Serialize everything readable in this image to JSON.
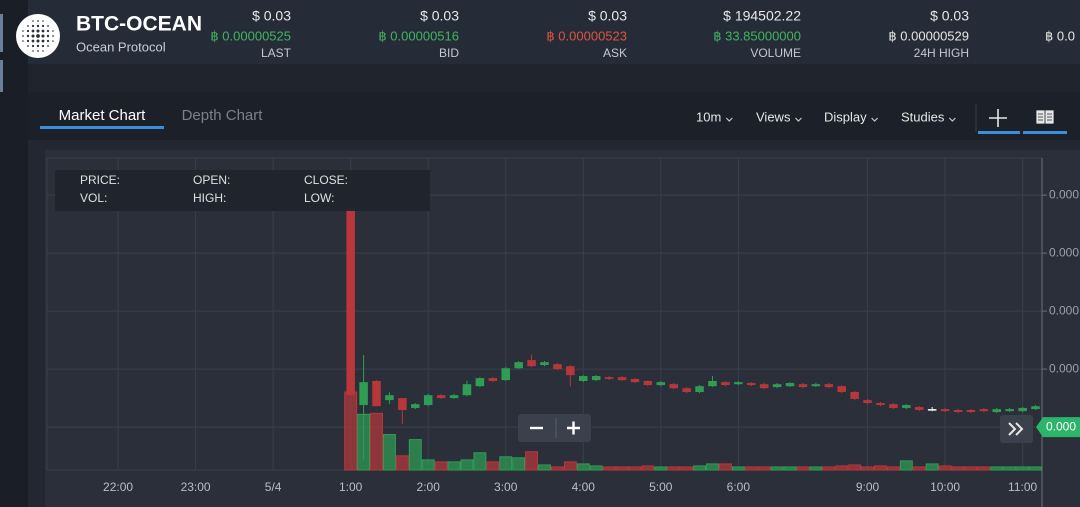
{
  "header": {
    "pair": "BTC-OCEAN",
    "name": "Ocean Protocol",
    "tickers": [
      {
        "usd": "$ 0.03",
        "btc": "฿ 0.00000525",
        "label": "LAST",
        "color": "#3fb55d"
      },
      {
        "usd": "$ 0.03",
        "btc": "฿ 0.00000516",
        "label": "BID",
        "color": "#3fb55d"
      },
      {
        "usd": "$ 0.03",
        "btc": "฿ 0.00000523",
        "label": "ASK",
        "color": "#e0533f"
      },
      {
        "usd": "$ 194502.22",
        "btc": "฿ 33.85000000",
        "label": "VOLUME",
        "color": "#3fb55d"
      },
      {
        "usd": "$ 0.03",
        "btc": "฿ 0.00000529",
        "label": "24H HIGH",
        "color": "#e6e6e6"
      },
      {
        "btc": "฿ 0.0",
        "color": "#e6e6e6"
      }
    ]
  },
  "tabs": [
    "Market Chart",
    "Depth Chart"
  ],
  "toolbar": [
    "10m",
    "Views",
    "Display",
    "Studies"
  ],
  "info_labels": [
    "PRICE:",
    "OPEN:",
    "CLOSE:",
    "VOL:",
    "HIGH:",
    "LOW:"
  ],
  "chart_data": {
    "type": "candlestick",
    "up_color": "#2f9e55",
    "down_color": "#b8373a",
    "grid": true,
    "categories": [
      null,
      null,
      null,
      null,
      null,
      "22:00",
      null,
      null,
      null,
      null,
      null,
      "23:00",
      null,
      null,
      null,
      null,
      null,
      "5/4",
      null,
      null,
      null,
      null,
      null,
      "1:00",
      null,
      null,
      null,
      null,
      null,
      "2:00",
      null,
      null,
      null,
      null,
      null,
      "3:00",
      null,
      null,
      null,
      null,
      null,
      "4:00",
      null,
      null,
      null,
      null,
      null,
      "5:00",
      null,
      null,
      null,
      null,
      null,
      "6:00",
      null,
      null,
      null,
      null,
      null,
      null,
      null,
      null,
      null,
      "9:00",
      null,
      null,
      null,
      null,
      null,
      "10:00",
      null,
      null,
      null,
      null,
      null,
      "11:00",
      null
    ],
    "open": [
      null,
      null,
      null,
      null,
      null,
      null,
      null,
      null,
      null,
      null,
      null,
      null,
      null,
      null,
      null,
      null,
      null,
      null,
      null,
      null,
      null,
      null,
      null,
      5.3255e-06,
      5.2576e-06,
      5.2659e-06,
      5.2593e-06,
      5.26e-06,
      5.2566e-06,
      5.2576e-06,
      5.261e-06,
      5.26e-06,
      5.261e-06,
      5.2641e-06,
      5.2669e-06,
      5.2662e-06,
      5.2703e-06,
      5.2731e-06,
      5.2714e-06,
      5.2717e-06,
      5.271e-06,
      5.2659e-06,
      5.2662e-06,
      5.2672e-06,
      5.2672e-06,
      5.2666e-06,
      5.2659e-06,
      5.2645e-06,
      5.2648e-06,
      5.2634e-06,
      5.2621e-06,
      5.2641e-06,
      5.2655e-06,
      5.2648e-06,
      5.2652e-06,
      5.2648e-06,
      5.2638e-06,
      5.2641e-06,
      5.2648e-06,
      5.2641e-06,
      5.2648e-06,
      5.2641e-06,
      5.2621e-06,
      5.2593e-06,
      5.2583e-06,
      5.2579e-06,
      5.2566e-06,
      5.2569e-06,
      5.2562e-06,
      5.2562e-06,
      5.2559e-06,
      5.2559e-06,
      5.2562e-06,
      5.2552e-06,
      5.2555e-06,
      5.2555e-06,
      5.2562e-06
    ],
    "high": [
      null,
      null,
      null,
      null,
      null,
      null,
      null,
      null,
      null,
      null,
      null,
      null,
      null,
      null,
      null,
      null,
      null,
      null,
      null,
      null,
      null,
      null,
      null,
      5.326e-06,
      5.2748e-06,
      5.2662e-06,
      5.262e-06,
      5.26e-06,
      5.2583e-06,
      5.2614e-06,
      5.2614e-06,
      5.2614e-06,
      5.266e-06,
      5.2672e-06,
      5.2672e-06,
      5.2707e-06,
      5.2728e-06,
      5.275e-06,
      5.2728e-06,
      5.2721e-06,
      5.2714e-06,
      5.2679e-06,
      5.2679e-06,
      5.2676e-06,
      5.2676e-06,
      5.2669e-06,
      5.2662e-06,
      5.2659e-06,
      5.2652e-06,
      5.2638e-06,
      5.2645e-06,
      5.2676e-06,
      5.2659e-06,
      5.2659e-06,
      5.2655e-06,
      5.2652e-06,
      5.2652e-06,
      5.2655e-06,
      5.2652e-06,
      5.2652e-06,
      5.2652e-06,
      5.2645e-06,
      5.2624e-06,
      5.2597e-06,
      5.2586e-06,
      5.2583e-06,
      5.2579e-06,
      5.2572e-06,
      5.2569e-06,
      5.2566e-06,
      5.2562e-06,
      5.2562e-06,
      5.2566e-06,
      5.2566e-06,
      5.2566e-06,
      5.2569e-06,
      5.2576e-06
    ],
    "low": [
      null,
      null,
      null,
      null,
      null,
      null,
      null,
      null,
      null,
      null,
      null,
      null,
      null,
      null,
      null,
      null,
      null,
      null,
      null,
      null,
      null,
      null,
      null,
      5.261e-06,
      5.2386e-06,
      5.2572e-06,
      5.258e-06,
      5.251e-06,
      5.2562e-06,
      5.2572e-06,
      5.2597e-06,
      5.2597e-06,
      5.2607e-06,
      5.2638e-06,
      5.2655e-06,
      5.2659e-06,
      5.27e-06,
      5.2707e-06,
      5.271e-06,
      5.2697e-06,
      5.264e-06,
      5.2655e-06,
      5.2659e-06,
      5.2662e-06,
      5.2659e-06,
      5.2652e-06,
      5.2641e-06,
      5.2641e-06,
      5.2631e-06,
      5.2617e-06,
      5.2617e-06,
      5.2638e-06,
      5.2641e-06,
      5.2645e-06,
      5.2641e-06,
      5.2631e-06,
      5.2634e-06,
      5.2638e-06,
      5.2634e-06,
      5.2638e-06,
      5.2634e-06,
      5.2617e-06,
      5.2593e-06,
      5.2579e-06,
      5.2572e-06,
      5.2562e-06,
      5.2562e-06,
      5.2555e-06,
      5.2555e-06,
      5.2552e-06,
      5.2548e-06,
      5.2548e-06,
      5.2552e-06,
      5.2548e-06,
      5.2552e-06,
      5.2552e-06,
      5.2559e-06
    ],
    "close": [
      null,
      null,
      null,
      null,
      null,
      null,
      null,
      null,
      null,
      null,
      null,
      null,
      null,
      null,
      null,
      null,
      null,
      null,
      null,
      null,
      null,
      null,
      null,
      5.261e-06,
      5.2655e-06,
      5.2572e-06,
      5.261e-06,
      5.2559e-06,
      5.2579e-06,
      5.261e-06,
      5.26e-06,
      5.261e-06,
      5.2648e-06,
      5.2669e-06,
      5.2659e-06,
      5.2703e-06,
      5.2724e-06,
      5.271e-06,
      5.2724e-06,
      5.27e-06,
      5.2679e-06,
      5.2676e-06,
      5.2676e-06,
      5.2666e-06,
      5.2662e-06,
      5.2655e-06,
      5.2645e-06,
      5.2655e-06,
      5.2634e-06,
      5.2621e-06,
      5.2641e-06,
      5.2659e-06,
      5.2645e-06,
      5.2655e-06,
      5.2645e-06,
      5.2634e-06,
      5.2648e-06,
      5.2652e-06,
      5.2638e-06,
      5.2648e-06,
      5.2638e-06,
      5.2621e-06,
      5.2597e-06,
      5.2583e-06,
      5.2576e-06,
      5.2566e-06,
      5.2576e-06,
      5.2559e-06,
      5.2562e-06,
      5.2555e-06,
      5.2552e-06,
      5.2552e-06,
      5.2555e-06,
      5.2562e-06,
      5.2562e-06,
      5.2566e-06,
      5.2572e-06
    ],
    "volume": [
      null,
      null,
      null,
      null,
      null,
      null,
      null,
      null,
      null,
      null,
      null,
      null,
      null,
      null,
      null,
      null,
      null,
      null,
      null,
      null,
      null,
      null,
      null,
      77,
      55,
      56,
      35,
      14,
      30,
      10,
      8,
      8,
      10,
      17,
      8,
      13,
      12,
      18,
      5,
      3,
      8,
      6,
      4,
      3,
      3,
      3,
      4,
      3,
      3,
      3,
      4,
      6,
      6,
      3,
      3,
      3,
      3,
      3,
      3,
      3,
      3,
      4,
      5,
      3,
      4,
      3,
      9,
      3,
      6,
      4,
      3,
      3,
      3,
      3,
      3,
      3,
      3
    ],
    "ylim": [
      5.2352e-06,
      5.3428e-06
    ],
    "yticks": [
      {
        "value": 5.25e-06,
        "label": "0.000"
      },
      {
        "value": 5.27e-06,
        "label": "0.000"
      },
      {
        "value": 5.29e-06,
        "label": "0.000"
      },
      {
        "value": 5.31e-06,
        "label": "0.000"
      },
      {
        "value": 5.33e-06,
        "label": "0.000"
      }
    ],
    "price_tag": {
      "value": 5.25e-06,
      "label": "0.000"
    }
  }
}
